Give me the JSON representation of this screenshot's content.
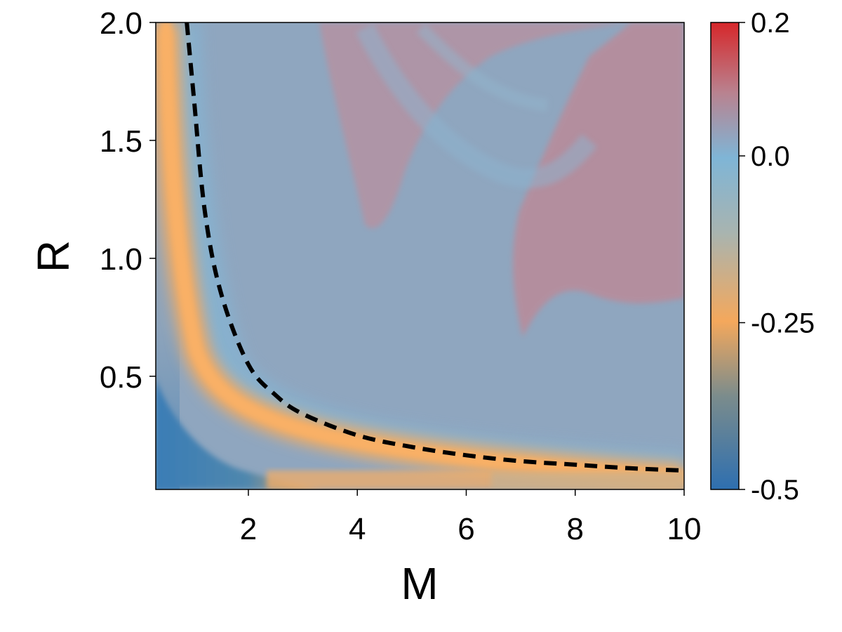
{
  "chart_data": {
    "type": "heatmap",
    "title": "",
    "xlabel": "M",
    "ylabel": "R",
    "xlim": [
      0.3,
      10
    ],
    "ylim": [
      0.02,
      2.0
    ],
    "x_ticks": [
      2,
      4,
      6,
      8,
      10
    ],
    "x_tick_labels": [
      "2",
      "4",
      "6",
      "8",
      "10"
    ],
    "y_ticks": [
      0.5,
      1.0,
      1.5,
      2.0
    ],
    "y_tick_labels": [
      "0.5",
      "1.0",
      "1.5",
      "2.0"
    ],
    "grid": false,
    "colorbar": {
      "range": [
        -0.5,
        0.2
      ],
      "ticks": [
        0.2,
        0.0,
        -0.25,
        -0.5
      ],
      "tick_labels": [
        "0.2",
        "0.0",
        "-0.25",
        "-0.5"
      ],
      "colors": [
        "#2e6fb0",
        "#7b8c8c",
        "#f4a85c",
        "#7fb5d6",
        "#c46b7a",
        "#d6272a"
      ]
    },
    "regions": [
      {
        "name": "background",
        "value": -0.02,
        "color": "#8fa6bf"
      },
      {
        "name": "band",
        "value": -0.27,
        "color": "#f5ac61"
      },
      {
        "name": "low corner",
        "value": -0.48,
        "color": "#3a7db6"
      },
      {
        "name": "upper right",
        "value": 0.08,
        "color": "#c88795"
      }
    ],
    "curve": {
      "style": "dashed",
      "color": "#000000",
      "x": [
        0.87,
        1.0,
        1.2,
        1.5,
        2.0,
        2.5,
        3.0,
        4.0,
        5.0,
        6.0,
        7.0,
        8.0,
        9.0,
        10.0
      ],
      "y": [
        2.0,
        1.68,
        1.2,
        0.85,
        0.55,
        0.42,
        0.34,
        0.25,
        0.2,
        0.165,
        0.14,
        0.125,
        0.11,
        0.1
      ]
    }
  }
}
